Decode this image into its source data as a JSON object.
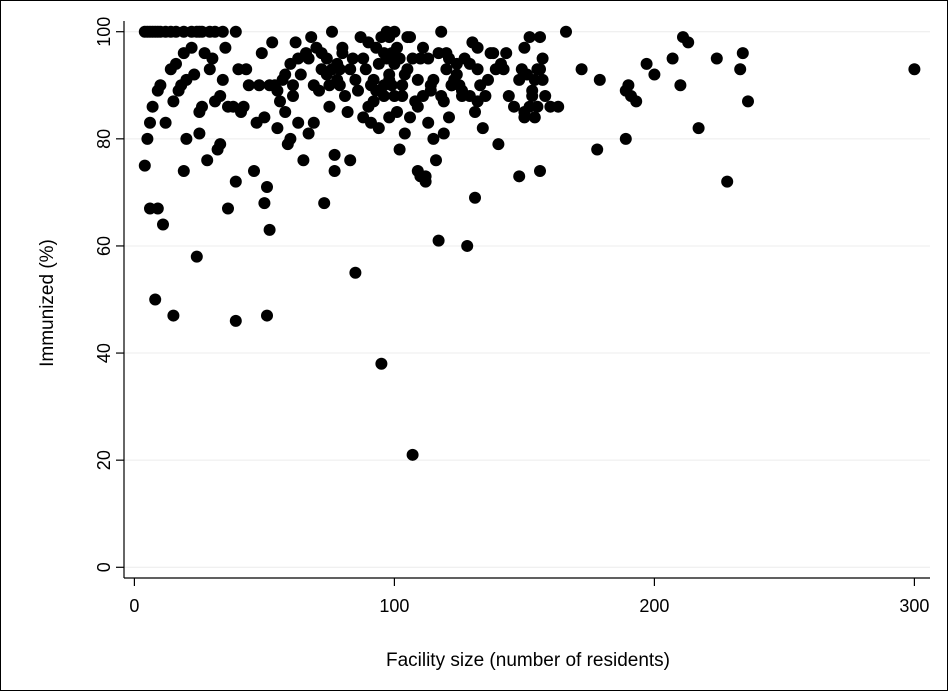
{
  "chart_data": {
    "type": "scatter",
    "title": "",
    "xlabel": "Facility size (number of residents)",
    "ylabel": "Immunized (%)",
    "xlim": [
      -4,
      306
    ],
    "ylim": [
      -2,
      102
    ],
    "x_ticks": [
      0,
      100,
      200,
      300
    ],
    "y_ticks": [
      0,
      20,
      40,
      60,
      80,
      100
    ],
    "grid": "horizontal",
    "legend": "none",
    "marker_color": "#000000",
    "points": [
      [
        4,
        100
      ],
      [
        5,
        100
      ],
      [
        6,
        100
      ],
      [
        7,
        100
      ],
      [
        8,
        100
      ],
      [
        9,
        100
      ],
      [
        10,
        100
      ],
      [
        12,
        100
      ],
      [
        14,
        100
      ],
      [
        16,
        100
      ],
      [
        19,
        100
      ],
      [
        22,
        100
      ],
      [
        24,
        100
      ],
      [
        25,
        100
      ],
      [
        26,
        100
      ],
      [
        29,
        100
      ],
      [
        31,
        100
      ],
      [
        34,
        100
      ],
      [
        39,
        100
      ],
      [
        4,
        75
      ],
      [
        5,
        80
      ],
      [
        6,
        83
      ],
      [
        6,
        67
      ],
      [
        7,
        86
      ],
      [
        8,
        50
      ],
      [
        9,
        67
      ],
      [
        9,
        89
      ],
      [
        10,
        90
      ],
      [
        11,
        64
      ],
      [
        12,
        83
      ],
      [
        14,
        93
      ],
      [
        15,
        47
      ],
      [
        15,
        87
      ],
      [
        16,
        94
      ],
      [
        17,
        89
      ],
      [
        18,
        90
      ],
      [
        19,
        74
      ],
      [
        19,
        96
      ],
      [
        20,
        80
      ],
      [
        20,
        91
      ],
      [
        22,
        97
      ],
      [
        23,
        92
      ],
      [
        24,
        58
      ],
      [
        25,
        85
      ],
      [
        25,
        81
      ],
      [
        26,
        86
      ],
      [
        27,
        96
      ],
      [
        28,
        76
      ],
      [
        29,
        93
      ],
      [
        30,
        95
      ],
      [
        31,
        87
      ],
      [
        32,
        78
      ],
      [
        33,
        88
      ],
      [
        33,
        79
      ],
      [
        34,
        91
      ],
      [
        35,
        97
      ],
      [
        36,
        67
      ],
      [
        36,
        86
      ],
      [
        38,
        86
      ],
      [
        39,
        46
      ],
      [
        39,
        72
      ],
      [
        40,
        93
      ],
      [
        41,
        85
      ],
      [
        42,
        86
      ],
      [
        43,
        93
      ],
      [
        46,
        74
      ],
      [
        47,
        83
      ],
      [
        48,
        90
      ],
      [
        49,
        96
      ],
      [
        50,
        68
      ],
      [
        50,
        84
      ],
      [
        51,
        71
      ],
      [
        51,
        47
      ],
      [
        52,
        63
      ],
      [
        53,
        98
      ],
      [
        54,
        90
      ],
      [
        55,
        89
      ],
      [
        56,
        87
      ],
      [
        57,
        91
      ],
      [
        58,
        85
      ],
      [
        59,
        79
      ],
      [
        60,
        80
      ],
      [
        61,
        88
      ],
      [
        62,
        98
      ],
      [
        63,
        95
      ],
      [
        64,
        92
      ],
      [
        65,
        76
      ],
      [
        66,
        96
      ],
      [
        67,
        81
      ],
      [
        68,
        99
      ],
      [
        69,
        83
      ],
      [
        70,
        97
      ],
      [
        71,
        89
      ],
      [
        72,
        93
      ],
      [
        73,
        68
      ],
      [
        74,
        95
      ],
      [
        75,
        90
      ],
      [
        76,
        100
      ],
      [
        77,
        77
      ],
      [
        77,
        74
      ],
      [
        78,
        91
      ],
      [
        79,
        93
      ],
      [
        80,
        96
      ],
      [
        81,
        88
      ],
      [
        82,
        85
      ],
      [
        83,
        76
      ],
      [
        84,
        95
      ],
      [
        85,
        55
      ],
      [
        86,
        89
      ],
      [
        87,
        99
      ],
      [
        88,
        84
      ],
      [
        89,
        93
      ],
      [
        90,
        86
      ],
      [
        91,
        83
      ],
      [
        92,
        91
      ],
      [
        93,
        97
      ],
      [
        94,
        82
      ],
      [
        95,
        38
      ],
      [
        96,
        90
      ],
      [
        97,
        100
      ],
      [
        98,
        92
      ],
      [
        99,
        96
      ],
      [
        100,
        88
      ],
      [
        101,
        85
      ],
      [
        102,
        78
      ],
      [
        103,
        90
      ],
      [
        104,
        81
      ],
      [
        105,
        93
      ],
      [
        106,
        84
      ],
      [
        107,
        21
      ],
      [
        108,
        87
      ],
      [
        109,
        91
      ],
      [
        110,
        73
      ],
      [
        111,
        97
      ],
      [
        112,
        72
      ],
      [
        113,
        83
      ],
      [
        114,
        90
      ],
      [
        115,
        80
      ],
      [
        116,
        76
      ],
      [
        117,
        61
      ],
      [
        118,
        88
      ],
      [
        119,
        81
      ],
      [
        120,
        93
      ],
      [
        121,
        84
      ],
      [
        122,
        90
      ],
      [
        124,
        92
      ],
      [
        126,
        89
      ],
      [
        128,
        60
      ],
      [
        129,
        94
      ],
      [
        131,
        69
      ],
      [
        131,
        85
      ],
      [
        132,
        87
      ],
      [
        134,
        82
      ],
      [
        136,
        91
      ],
      [
        138,
        96
      ],
      [
        140,
        79
      ],
      [
        142,
        93
      ],
      [
        144,
        88
      ],
      [
        148,
        73
      ],
      [
        149,
        93
      ],
      [
        150,
        84
      ],
      [
        152,
        99
      ],
      [
        153,
        88
      ],
      [
        155,
        86
      ],
      [
        156,
        74
      ],
      [
        157,
        95
      ],
      [
        157,
        91
      ],
      [
        160,
        86
      ],
      [
        166,
        100
      ],
      [
        172,
        93
      ],
      [
        178,
        78
      ],
      [
        179,
        91
      ],
      [
        189,
        89
      ],
      [
        189,
        80
      ],
      [
        193,
        87
      ],
      [
        197,
        94
      ],
      [
        200,
        92
      ],
      [
        207,
        95
      ],
      [
        210,
        90
      ],
      [
        211,
        99
      ],
      [
        213,
        98
      ],
      [
        217,
        82
      ],
      [
        224,
        95
      ],
      [
        228,
        72
      ],
      [
        233,
        93
      ],
      [
        234,
        96
      ],
      [
        236,
        87
      ],
      [
        300,
        93
      ],
      [
        44,
        90
      ],
      [
        52,
        90
      ],
      [
        55,
        82
      ],
      [
        58,
        92
      ],
      [
        60,
        94
      ],
      [
        61,
        90
      ],
      [
        63,
        83
      ],
      [
        67,
        95
      ],
      [
        69,
        90
      ],
      [
        72,
        96
      ],
      [
        74,
        92
      ],
      [
        75,
        86
      ],
      [
        76,
        93
      ],
      [
        78,
        94
      ],
      [
        79,
        90
      ],
      [
        80,
        97
      ],
      [
        83,
        93
      ],
      [
        85,
        91
      ],
      [
        88,
        95
      ],
      [
        90,
        98
      ],
      [
        91,
        90
      ],
      [
        92,
        87
      ],
      [
        93,
        89
      ],
      [
        94,
        94
      ],
      [
        95,
        99
      ],
      [
        96,
        96
      ],
      [
        97,
        95
      ],
      [
        98,
        91
      ],
      [
        99,
        90
      ],
      [
        100,
        94
      ],
      [
        101,
        97
      ],
      [
        103,
        88
      ],
      [
        104,
        92
      ],
      [
        105,
        99
      ],
      [
        107,
        95
      ],
      [
        109,
        86
      ],
      [
        111,
        88
      ],
      [
        113,
        95
      ],
      [
        115,
        91
      ],
      [
        117,
        96
      ],
      [
        119,
        87
      ],
      [
        121,
        95
      ],
      [
        123,
        91
      ],
      [
        125,
        90
      ],
      [
        127,
        95
      ],
      [
        129,
        88
      ],
      [
        130,
        98
      ],
      [
        132,
        93
      ],
      [
        133,
        90
      ],
      [
        135,
        88
      ],
      [
        137,
        96
      ],
      [
        139,
        93
      ],
      [
        141,
        94
      ],
      [
        143,
        96
      ],
      [
        146,
        86
      ],
      [
        148,
        91
      ],
      [
        150,
        97
      ],
      [
        151,
        92
      ],
      [
        152,
        86
      ],
      [
        154,
        91
      ],
      [
        156,
        99
      ],
      [
        156,
        93
      ],
      [
        158,
        88
      ],
      [
        163,
        86
      ],
      [
        109,
        74
      ],
      [
        112,
        73
      ],
      [
        96,
        88
      ],
      [
        98,
        84
      ],
      [
        100,
        100
      ],
      [
        102,
        95
      ],
      [
        106,
        99
      ],
      [
        110,
        95
      ],
      [
        114,
        89
      ],
      [
        118,
        100
      ],
      [
        120,
        96
      ],
      [
        122,
        90
      ],
      [
        124,
        94
      ],
      [
        126,
        88
      ],
      [
        132,
        97
      ],
      [
        150,
        85
      ],
      [
        153,
        89
      ],
      [
        154,
        84
      ],
      [
        155,
        93
      ],
      [
        190,
        90
      ],
      [
        191,
        88
      ],
      [
        98,
        99
      ]
    ]
  }
}
